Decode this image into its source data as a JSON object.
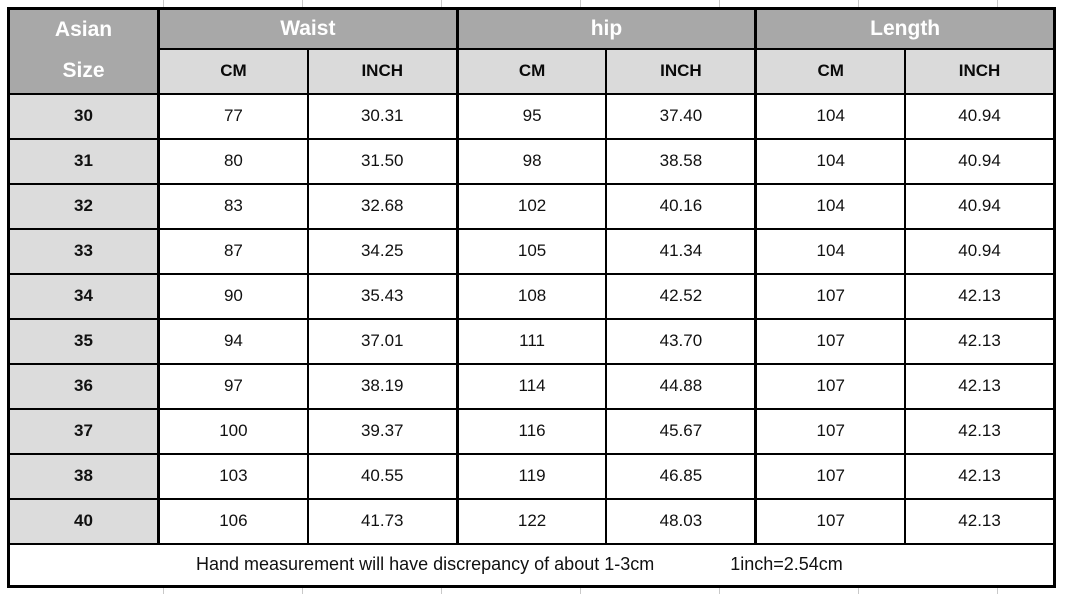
{
  "header": {
    "size_col_line1": "Asian",
    "size_col_line2": "Size",
    "groups": [
      "Waist",
      "hip",
      "Length"
    ],
    "units": [
      "CM",
      "INCH",
      "CM",
      "INCH",
      "CM",
      "INCH"
    ]
  },
  "rows": [
    [
      "30",
      "77",
      "30.31",
      "95",
      "37.40",
      "104",
      "40.94"
    ],
    [
      "31",
      "80",
      "31.50",
      "98",
      "38.58",
      "104",
      "40.94"
    ],
    [
      "32",
      "83",
      "32.68",
      "102",
      "40.16",
      "104",
      "40.94"
    ],
    [
      "33",
      "87",
      "34.25",
      "105",
      "41.34",
      "104",
      "40.94"
    ],
    [
      "34",
      "90",
      "35.43",
      "108",
      "42.52",
      "107",
      "42.13"
    ],
    [
      "35",
      "94",
      "37.01",
      "111",
      "43.70",
      "107",
      "42.13"
    ],
    [
      "36",
      "97",
      "38.19",
      "114",
      "44.88",
      "107",
      "42.13"
    ],
    [
      "37",
      "100",
      "39.37",
      "116",
      "45.67",
      "107",
      "42.13"
    ],
    [
      "38",
      "103",
      "40.55",
      "119",
      "46.85",
      "107",
      "42.13"
    ],
    [
      "40",
      "106",
      "41.73",
      "122",
      "48.03",
      "107",
      "42.13"
    ]
  ],
  "footer": {
    "note": "Hand measurement will have discrepancy of about 1-3cm",
    "conversion": "1inch=2.54cm"
  },
  "colors": {
    "group_header_bg": "#a8a8a8",
    "subheader_bg": "#dadada",
    "size_col_bg": "#dcdcdc",
    "header_text": "#ffffff",
    "border": "#000000",
    "gridline": "#c9c9c9"
  }
}
